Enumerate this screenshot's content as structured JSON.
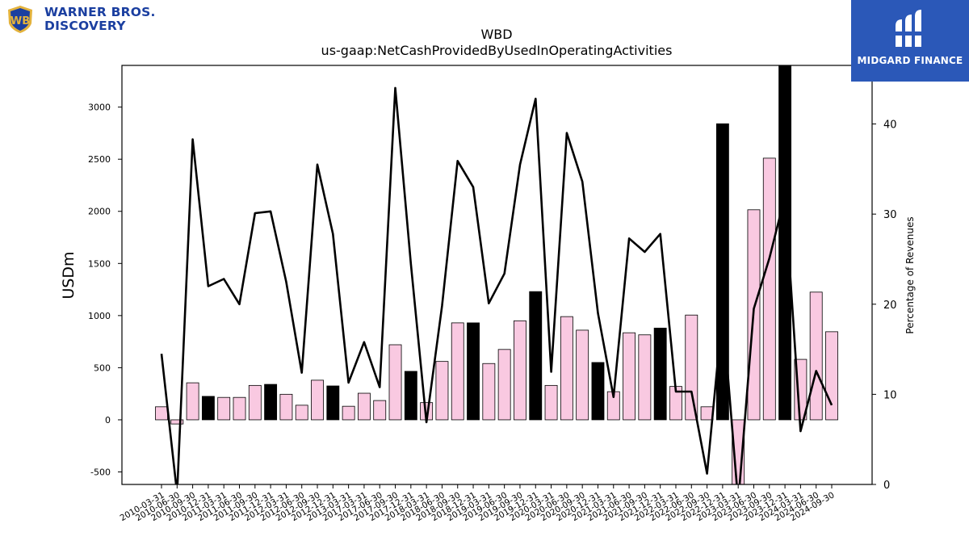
{
  "brand": {
    "company_line1": "WARNER BROS.",
    "company_line2": "DISCOVERY",
    "sponsor": "MIDGARD FINANCE",
    "colors": {
      "wb_blue": "#1b3fa0",
      "wb_gold": "#e3b23c",
      "midgard_bg": "#2b58b8"
    }
  },
  "chart_data": {
    "type": "bar",
    "title": "WBD",
    "subtitle": "us-gaap:NetCashProvidedByUsedInOperatingActivities",
    "ylabel": "USDm",
    "y2label": "Percentage of Revenues",
    "ylim": [
      -620,
      3400
    ],
    "y2lim": [
      0,
      46.5
    ],
    "yticks": [
      -500,
      0,
      500,
      1000,
      1500,
      2000,
      2500,
      3000
    ],
    "y2ticks": [
      0,
      10,
      20,
      30,
      40
    ],
    "grid": false,
    "categories": [
      "2010-03-31",
      "2010-06-30",
      "2010-09-30",
      "2010-12-31",
      "2011-03-31",
      "2011-06-30",
      "2011-09-30",
      "2011-12-31",
      "2012-03-31",
      "2012-06-30",
      "2012-09-30",
      "2012-12-31",
      "2013-03-31",
      "2017-03-31",
      "2017-06-30",
      "2017-09-30",
      "2017-12-31",
      "2018-03-31",
      "2018-06-30",
      "2018-09-30",
      "2018-12-31",
      "2019-03-31",
      "2019-06-30",
      "2019-09-30",
      "2019-12-31",
      "2020-03-31",
      "2020-06-30",
      "2020-09-30",
      "2020-12-31",
      "2021-03-31",
      "2021-06-30",
      "2021-09-30",
      "2021-12-31",
      "2022-03-31",
      "2022-06-30",
      "2022-09-30",
      "2022-12-31",
      "2023-03-31",
      "2023-06-30",
      "2023-09-30",
      "2023-12-31",
      "2024-03-31",
      "2024-06-30",
      "2024-09-30"
    ],
    "series": [
      {
        "kind": "bar",
        "values": [
          125,
          -40,
          355,
          225,
          215,
          215,
          330,
          340,
          245,
          140,
          380,
          325,
          130,
          255,
          185,
          720,
          465,
          165,
          560,
          930,
          930,
          540,
          675,
          950,
          1230,
          330,
          990,
          860,
          550,
          270,
          835,
          815,
          880,
          320,
          1005,
          125,
          2840,
          -620,
          2015,
          2510,
          3400,
          580,
          1225,
          845
        ],
        "quarter_end_q4": [
          false,
          false,
          false,
          true,
          false,
          false,
          false,
          true,
          false,
          false,
          false,
          true,
          false,
          false,
          false,
          false,
          true,
          false,
          false,
          false,
          true,
          false,
          false,
          false,
          true,
          false,
          false,
          false,
          true,
          false,
          false,
          false,
          true,
          false,
          false,
          false,
          true,
          false,
          false,
          false,
          true,
          false,
          false,
          false
        ]
      },
      {
        "kind": "line",
        "axis": "secondary",
        "values": [
          14.5,
          -1.0,
          38.3,
          22.0,
          22.8,
          20.0,
          30.1,
          30.3,
          22.5,
          12.4,
          35.5,
          27.8,
          11.3,
          15.8,
          10.8,
          44.0,
          24.5,
          6.9,
          19.8,
          35.9,
          33.0,
          20.1,
          23.4,
          35.5,
          42.8,
          12.5,
          39.0,
          33.6,
          19.0,
          9.7,
          27.3,
          25.8,
          27.8,
          10.3,
          10.3,
          1.2,
          19.3,
          -2.0,
          19.5,
          25.1,
          32.0,
          5.9,
          12.6,
          8.8
        ]
      }
    ],
    "colors": {
      "bar_default": "#f9c9e1",
      "bar_q4": "#000000",
      "line": "#000000"
    }
  }
}
